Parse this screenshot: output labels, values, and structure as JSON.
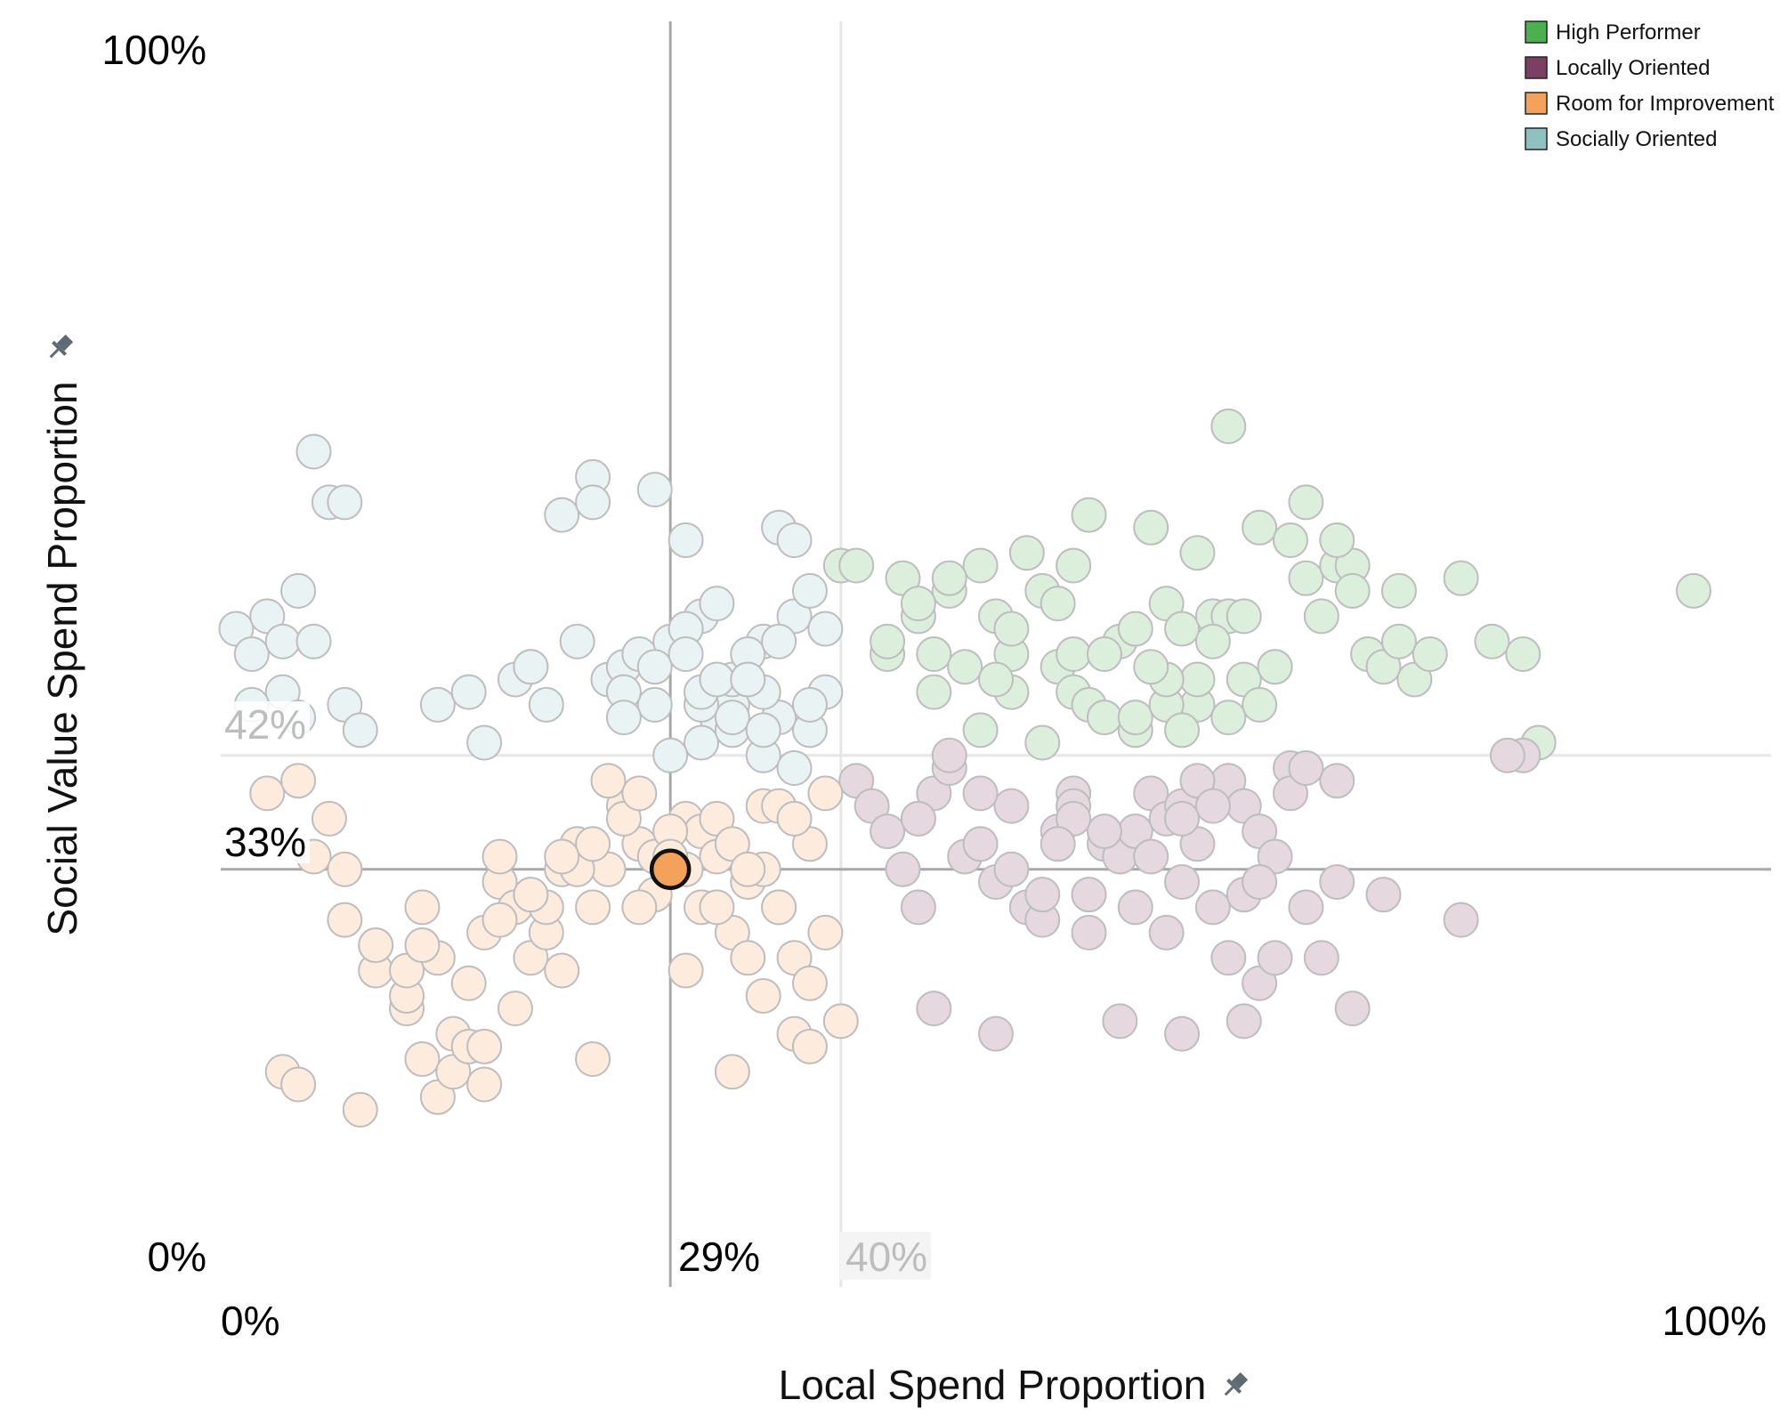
{
  "chart_data": {
    "type": "scatter",
    "xlabel": "Local Spend Proportion",
    "ylabel": "Social Value Spend Proportion",
    "x_ticks": [
      "0%",
      "100%"
    ],
    "y_ticks": [
      "0%",
      "100%"
    ],
    "xlim": [
      0,
      100
    ],
    "ylim": [
      0,
      100
    ],
    "grid": false,
    "legend_position": "top-right",
    "legend": [
      {
        "name": "High Performer",
        "color": "#4caf50"
      },
      {
        "name": "Locally Oriented",
        "color": "#7b3f61"
      },
      {
        "name": "Room for Improvement",
        "color": "#f4a259"
      },
      {
        "name": "Socially Oriented",
        "color": "#8fc1c1"
      }
    ],
    "reference_lines": {
      "x_selected": {
        "value": 29,
        "label": "29%"
      },
      "x_average": {
        "value": 40,
        "label": "40%"
      },
      "y_selected": {
        "value": 33,
        "label": "33%"
      },
      "y_average": {
        "value": 42,
        "label": "42%"
      }
    },
    "highlighted_point": {
      "x": 29,
      "y": 33,
      "group": "Room for Improvement"
    },
    "series": [
      {
        "name": "High Performer",
        "color": "#4caf50",
        "x": [
          40,
          41,
          43,
          44,
          45,
          46,
          47,
          48,
          49,
          50,
          51,
          51,
          52,
          53,
          54,
          54,
          55,
          56,
          57,
          58,
          59,
          60,
          61,
          62,
          63,
          63,
          64,
          65,
          66,
          67,
          67,
          68,
          69,
          70,
          71,
          72,
          73,
          73,
          74,
          75,
          76,
          77,
          78,
          80,
          82,
          84,
          45,
          47,
          49,
          51,
          53,
          55,
          57,
          59,
          61,
          62,
          63,
          64,
          65,
          66,
          68,
          70,
          55,
          57,
          59,
          61,
          43,
          46,
          50,
          56,
          60,
          65,
          72,
          76,
          85,
          95
        ],
        "y": [
          57,
          57,
          50,
          56,
          53,
          50,
          55,
          49,
          57,
          53,
          50,
          52,
          58,
          55,
          54,
          49,
          47,
          46,
          45,
          51,
          44,
          60,
          54,
          52,
          58,
          46,
          53,
          53,
          48,
          46,
          60,
          49,
          59,
          56,
          53,
          57,
          57,
          55,
          50,
          49,
          51,
          48,
          50,
          56,
          51,
          50,
          54,
          56,
          44,
          47,
          43,
          50,
          45,
          45,
          46,
          44,
          48,
          51,
          45,
          53,
          49,
          62,
          57,
          50,
          52,
          48,
          51,
          47,
          48,
          61,
          49,
          68,
          59,
          55,
          43,
          55
        ]
      },
      {
        "name": "Locally Oriented",
        "color": "#7b3f61",
        "x": [
          41,
          42,
          43,
          44,
          45,
          45,
          46,
          47,
          48,
          49,
          50,
          51,
          52,
          53,
          54,
          55,
          56,
          56,
          57,
          58,
          59,
          60,
          61,
          62,
          63,
          64,
          65,
          66,
          67,
          68,
          45,
          47,
          49,
          51,
          53,
          55,
          57,
          59,
          61,
          62,
          63,
          64,
          65,
          66,
          67,
          68,
          69,
          70,
          71,
          72,
          73,
          55,
          58,
          60,
          62,
          64,
          66,
          67,
          69,
          70,
          75,
          80,
          84,
          62,
          72,
          83,
          46,
          50,
          54
        ],
        "y": [
          40,
          38,
          36,
          33,
          30,
          37,
          39,
          41,
          34,
          35,
          32,
          38,
          30,
          29,
          36,
          39,
          31,
          28,
          35,
          34,
          36,
          39,
          37,
          32,
          35,
          39,
          40,
          38,
          24,
          26,
          37,
          42,
          39,
          33,
          31,
          38,
          36,
          30,
          28,
          38,
          40,
          38,
          26,
          21,
          36,
          34,
          41,
          30,
          26,
          40,
          22,
          37,
          21,
          34,
          37,
          30,
          31,
          32,
          39,
          41,
          31,
          29,
          42,
          20,
          32,
          42,
          22,
          20,
          35
        ]
      },
      {
        "name": "Room for Improvement",
        "color": "#f4a259",
        "x": [
          3,
          5,
          6,
          7,
          8,
          10,
          12,
          13,
          14,
          15,
          16,
          17,
          18,
          19,
          20,
          21,
          22,
          23,
          24,
          25,
          26,
          27,
          28,
          29,
          30,
          31,
          32,
          33,
          34,
          35,
          36,
          37,
          38,
          39,
          40,
          10,
          13,
          15,
          17,
          19,
          21,
          23,
          25,
          27,
          28,
          29,
          30,
          31,
          32,
          33,
          34,
          35,
          36,
          37,
          38,
          39,
          12,
          14,
          16,
          18,
          20,
          22,
          24,
          26,
          30,
          32,
          34,
          36,
          38,
          4,
          8,
          12,
          17,
          22,
          27,
          33,
          37,
          5,
          9,
          13,
          18,
          24,
          29,
          35
        ],
        "y": [
          39,
          40,
          34,
          37,
          29,
          25,
          22,
          18,
          15,
          20,
          24,
          28,
          32,
          30,
          26,
          28,
          33,
          35,
          30,
          33,
          38,
          35,
          31,
          33,
          37,
          36,
          34,
          28,
          32,
          38,
          30,
          26,
          35,
          39,
          21,
          27,
          30,
          17,
          16,
          22,
          30,
          33,
          40,
          30,
          34,
          36,
          33,
          30,
          37,
          35,
          26,
          33,
          30,
          20,
          24,
          28,
          23,
          26,
          19,
          34,
          31,
          25,
          35,
          37,
          25,
          30,
          33,
          38,
          19,
          17,
          33,
          25,
          19,
          34,
          39,
          17,
          37,
          16,
          14,
          27,
          29,
          18,
          34,
          23
        ]
      },
      {
        "name": "Socially Oriented",
        "color": "#8fc1c1",
        "x": [
          1,
          2,
          3,
          4,
          5,
          6,
          7,
          8,
          9,
          14,
          16,
          19,
          20,
          21,
          22,
          23,
          24,
          25,
          26,
          27,
          28,
          29,
          30,
          31,
          32,
          33,
          34,
          35,
          36,
          37,
          38,
          39,
          2,
          4,
          5,
          6,
          8,
          17,
          20,
          24,
          26,
          31,
          33,
          35,
          37,
          38,
          39,
          28,
          32,
          34,
          36,
          30,
          31,
          33,
          35,
          26,
          28,
          29,
          30,
          31,
          32,
          33,
          34,
          35,
          36,
          37,
          38
        ],
        "y": [
          52,
          50,
          53,
          47,
          55,
          66,
          62,
          46,
          44,
          46,
          47,
          48,
          49,
          46,
          61,
          51,
          64,
          48,
          49,
          50,
          46,
          51,
          59,
          53,
          45,
          46,
          48,
          42,
          60,
          53,
          55,
          52,
          46,
          51,
          45,
          51,
          62,
          43,
          49,
          62,
          47,
          43,
          48,
          51,
          41,
          44,
          47,
          63,
          54,
          50,
          45,
          52,
          46,
          44,
          47,
          45,
          49,
          42,
          50,
          47,
          48,
          45,
          48,
          44,
          51,
          59,
          46
        ]
      }
    ]
  }
}
